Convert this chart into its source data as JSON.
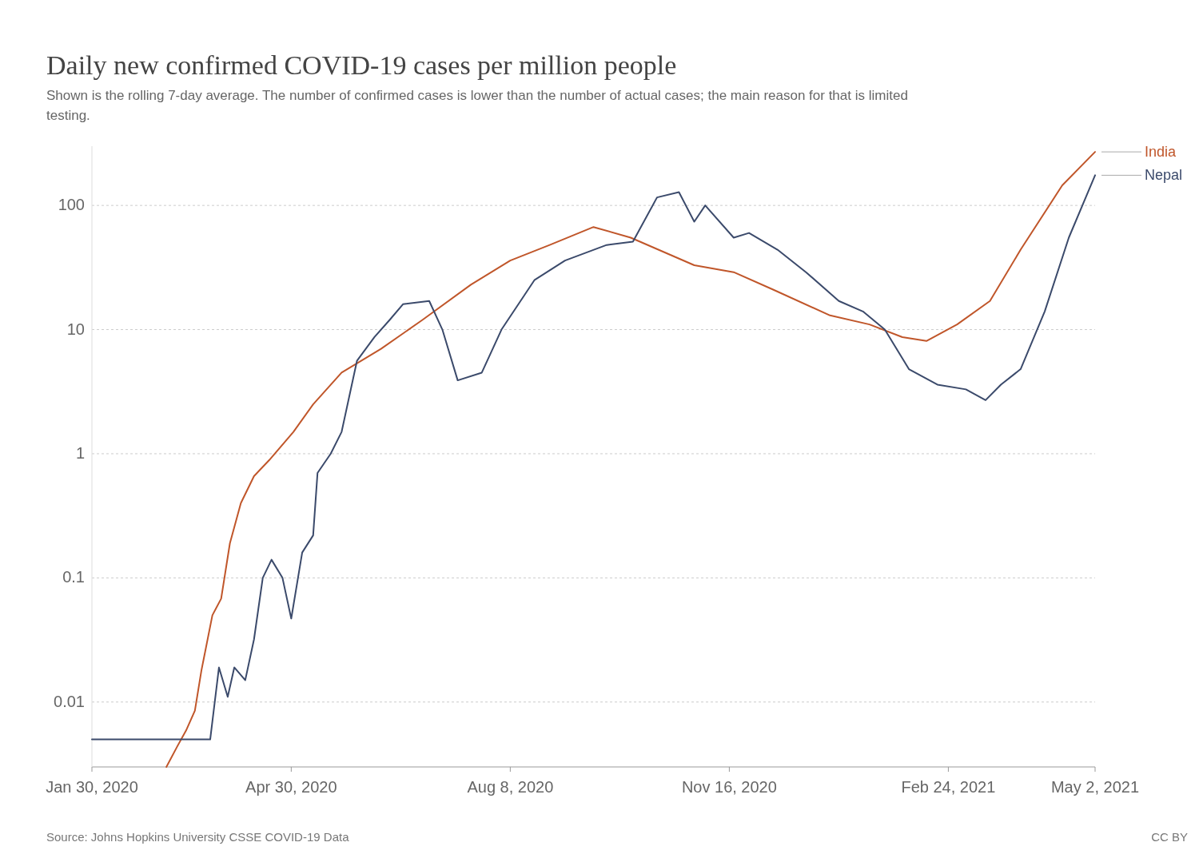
{
  "chart_data": {
    "type": "line",
    "title": "Daily new confirmed COVID-19 cases per million people",
    "subtitle": "Shown is the rolling 7-day average. The number of confirmed cases is lower than the number of actual cases; the main reason for that is limited testing.",
    "log": "y",
    "grid": "y",
    "legend": "right",
    "marker": "none",
    "line_style": "solid",
    "xlim": [
      "2020-01-30",
      "2021-05-02"
    ],
    "xticks": [
      {
        "value": "2020-01-30",
        "label": "Jan 30, 2020"
      },
      {
        "value": "2020-04-30",
        "label": "Apr 30, 2020"
      },
      {
        "value": "2020-08-08",
        "label": "Aug 8, 2020"
      },
      {
        "value": "2020-11-16",
        "label": "Nov 16, 2020"
      },
      {
        "value": "2021-02-24",
        "label": "Feb 24, 2021"
      },
      {
        "value": "2021-05-02",
        "label": "May 2, 2021"
      }
    ],
    "ylim": [
      0.003,
      300
    ],
    "yticks": [
      0.01,
      0.1,
      1,
      10,
      100
    ],
    "series": [
      {
        "name": "India",
        "color": "#c0562a",
        "x": [
          "2020-03-04",
          "2020-03-09",
          "2020-03-13",
          "2020-03-17",
          "2020-03-20",
          "2020-03-25",
          "2020-03-29",
          "2020-04-02",
          "2020-04-07",
          "2020-04-13",
          "2020-04-20",
          "2020-05-01",
          "2020-05-10",
          "2020-05-23",
          "2020-06-10",
          "2020-06-29",
          "2020-07-21",
          "2020-08-08",
          "2020-08-26",
          "2020-09-15",
          "2020-10-02",
          "2020-10-31",
          "2020-11-18",
          "2020-12-06",
          "2021-01-01",
          "2021-01-19",
          "2021-02-03",
          "2021-02-14",
          "2021-02-28",
          "2021-03-15",
          "2021-03-29",
          "2021-04-17",
          "2021-05-02"
        ],
        "values": [
          0.003,
          0.0044,
          0.0059,
          0.0085,
          0.018,
          0.05,
          0.068,
          0.19,
          0.4,
          0.66,
          0.89,
          1.5,
          2.5,
          4.5,
          7,
          12,
          23,
          36,
          48,
          67,
          55,
          33,
          29,
          21,
          13,
          11,
          8.7,
          8.1,
          11,
          17,
          44,
          145,
          270
        ]
      },
      {
        "name": "Nepal",
        "color": "#3b4a6b",
        "x": [
          "2020-01-30",
          "2020-03-24",
          "2020-03-28",
          "2020-04-01",
          "2020-04-04",
          "2020-04-09",
          "2020-04-13",
          "2020-04-17",
          "2020-04-21",
          "2020-04-26",
          "2020-04-30",
          "2020-05-05",
          "2020-05-10",
          "2020-05-12",
          "2020-05-18",
          "2020-05-23",
          "2020-05-30",
          "2020-06-07",
          "2020-06-14",
          "2020-06-20",
          "2020-07-02",
          "2020-07-08",
          "2020-07-15",
          "2020-07-26",
          "2020-08-04",
          "2020-08-19",
          "2020-09-02",
          "2020-09-21",
          "2020-10-03",
          "2020-10-14",
          "2020-10-24",
          "2020-10-31",
          "2020-11-05",
          "2020-11-18",
          "2020-11-25",
          "2020-12-08",
          "2020-12-21",
          "2021-01-05",
          "2021-01-16",
          "2021-01-26",
          "2021-02-06",
          "2021-02-19",
          "2021-03-04",
          "2021-03-13",
          "2021-03-20",
          "2021-03-29",
          "2021-04-09",
          "2021-04-20",
          "2021-05-02"
        ],
        "values": [
          0.005,
          0.005,
          0.019,
          0.011,
          0.019,
          0.015,
          0.032,
          0.1,
          0.14,
          0.1,
          0.047,
          0.16,
          0.22,
          0.7,
          1.0,
          1.5,
          5.6,
          8.7,
          12,
          16,
          17,
          10,
          3.9,
          4.5,
          10,
          25,
          36,
          48,
          51,
          116,
          128,
          74,
          100,
          55,
          60,
          44,
          29,
          17,
          14,
          10,
          4.8,
          3.6,
          3.3,
          2.7,
          3.6,
          4.8,
          14,
          55,
          175
        ]
      }
    ],
    "annotations": [
      "Source: Johns Hopkins University CSSE COVID-19 Data",
      "CC BY"
    ]
  }
}
